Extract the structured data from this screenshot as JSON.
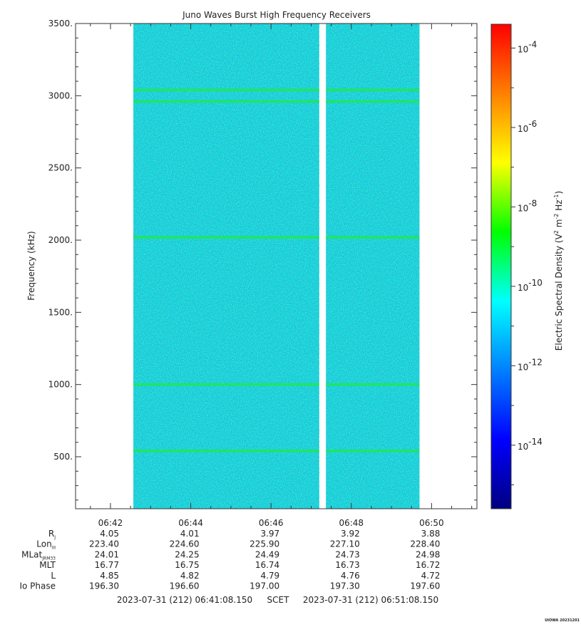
{
  "chart_data": {
    "type": "heatmap",
    "title": "Juno Waves Burst High Frequency Receivers",
    "ylabel": "Frequency (kHz)",
    "ylim": [
      140,
      3500
    ],
    "y_ticks": [
      "500.",
      "1000.",
      "1500.",
      "2000.",
      "2500.",
      "3000.",
      "3500."
    ],
    "y_tick_values": [
      500,
      1000,
      1500,
      2000,
      2500,
      3000,
      3500
    ],
    "x_tick_labels": [
      "06:42",
      "06:44",
      "06:46",
      "06:48",
      "06:50"
    ],
    "x_tick_minutes": [
      42,
      44,
      46,
      48,
      50
    ],
    "xlim_minutes": [
      41.13,
      51.13
    ],
    "data_segments_minutes": [
      [
        42.57,
        47.2
      ],
      [
        47.37,
        49.7
      ]
    ],
    "emission_lines_khz": [
      540,
      1000,
      2020,
      2960,
      3040
    ],
    "colorbar": {
      "label": "Electric Spectral Density (V",
      "label_sup1": "2",
      "label_mid": " m",
      "label_sup2": "-2",
      "label_mid2": " Hz",
      "label_sup3": "-1",
      "label_end": ")",
      "range_log": [
        -15.6,
        -3.4
      ],
      "tick_base": "10",
      "tick_exponents": [
        "-4",
        "-6",
        "-8",
        "-10",
        "-12",
        "-14"
      ],
      "tick_values_log": [
        -4,
        -6,
        -8,
        -10,
        -12,
        -14
      ],
      "colors": [
        "#000080",
        "#0000ff",
        "#0080ff",
        "#00ffff",
        "#00ff00",
        "#ffff00",
        "#ff8000",
        "#ff0000"
      ]
    },
    "background_color": "#00e6d2",
    "ephemeris": {
      "rows": [
        {
          "label": "R",
          "sub": "J",
          "values": [
            "4.05",
            "4.01",
            "3.97",
            "3.92",
            "3.88"
          ]
        },
        {
          "label": "Lon",
          "sub": "III",
          "values": [
            "223.40",
            "224.60",
            "225.90",
            "227.10",
            "228.40"
          ]
        },
        {
          "label": "MLat",
          "sub": "JRM33",
          "values": [
            "24.01",
            "24.25",
            "24.49",
            "24.73",
            "24.98"
          ]
        },
        {
          "label": "MLT",
          "sub": "",
          "values": [
            "16.77",
            "16.75",
            "16.74",
            "16.73",
            "16.72"
          ]
        },
        {
          "label": "L",
          "sub": "",
          "values": [
            "4.85",
            "4.82",
            "4.79",
            "4.76",
            "4.72"
          ]
        },
        {
          "label": "Io Phase",
          "sub": "",
          "values": [
            "196.30",
            "196.60",
            "197.00",
            "197.30",
            "197.60"
          ]
        }
      ]
    },
    "time_range": {
      "start": "2023-07-31 (212) 06:41:08.150",
      "frame": "SCET",
      "end": "2023-07-31 (212) 06:51:08.150"
    },
    "stamp": "UIOWA 20231201"
  }
}
